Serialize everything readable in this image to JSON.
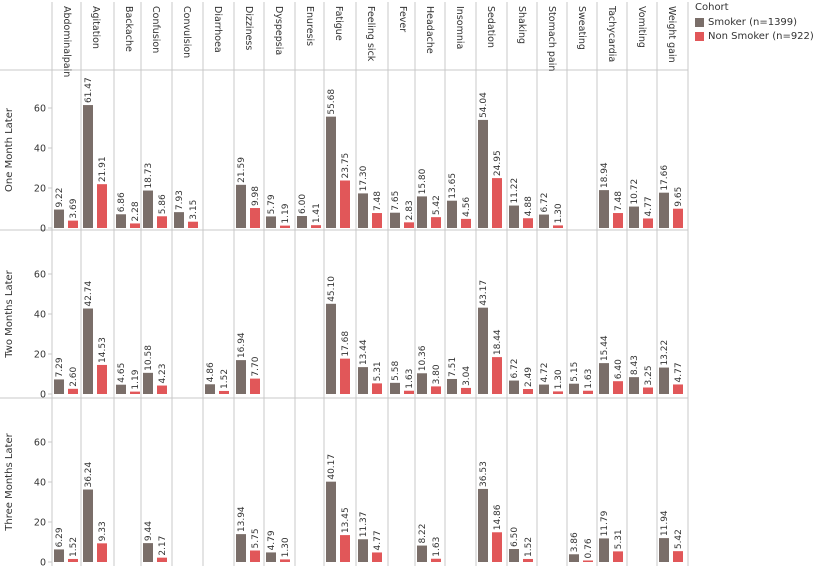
{
  "legend": {
    "title": "Cohort",
    "smoker_label": "Smoker (n=1399)",
    "nonsmoker_label": "Non Smoker (n=922)"
  },
  "colors": {
    "smoker": "#7a6e69",
    "nonsmoker": "#e15759"
  },
  "chart_data": {
    "type": "bar",
    "layout": "small-multiples (rows = time period, columns = symptom)",
    "categories": [
      "Abdominal pain",
      "Agitation",
      "Backache",
      "Confusion",
      "Convulsion",
      "Diarrhoea",
      "Dizziness",
      "Dyspepsia",
      "Enuresis",
      "Fatigue",
      "Feeling sick",
      "Fever",
      "Headache",
      "Insomnia",
      "Sedation",
      "Shaking",
      "Stomach pain",
      "Sweating",
      "Tachycardia",
      "Vomiting",
      "Weight gain"
    ],
    "category_labels": [
      "Abdominalpain",
      "Agitation",
      "Backache",
      "Confusion",
      "Convulsion",
      "Diarrhoea",
      "Dizziness",
      "Dyspepsia",
      "Enuresis",
      "Fatigue",
      "Feeling sick",
      "Fever",
      "Headache",
      "Insomnia",
      "Sedation",
      "Shaking",
      "Stomach pain",
      "Sweating",
      "Tachycardia",
      "Vomiting",
      "Weight gain"
    ],
    "rows": [
      {
        "label": "One Month Later",
        "series": [
          {
            "name": "Smoker (n=1399)",
            "values": [
              9.22,
              61.47,
              6.86,
              18.73,
              7.93,
              null,
              21.59,
              5.79,
              6.0,
              55.68,
              17.3,
              7.65,
              15.8,
              13.65,
              54.04,
              11.22,
              6.72,
              null,
              18.94,
              10.72,
              17.66
            ]
          },
          {
            "name": "Non Smoker (n=922)",
            "values": [
              3.69,
              21.91,
              2.28,
              5.86,
              3.15,
              null,
              9.98,
              1.19,
              1.41,
              23.75,
              7.48,
              2.83,
              5.42,
              4.56,
              24.95,
              4.88,
              1.3,
              null,
              7.48,
              4.77,
              9.65
            ]
          }
        ]
      },
      {
        "label": "Two Months Later",
        "series": [
          {
            "name": "Smoker (n=1399)",
            "values": [
              7.29,
              42.74,
              4.65,
              10.58,
              null,
              4.86,
              16.94,
              null,
              null,
              45.1,
              13.44,
              5.58,
              10.36,
              7.51,
              43.17,
              6.72,
              4.72,
              5.15,
              15.44,
              8.43,
              13.22
            ]
          },
          {
            "name": "Non Smoker (n=922)",
            "values": [
              2.6,
              14.53,
              1.19,
              4.23,
              null,
              1.52,
              7.7,
              null,
              null,
              17.68,
              5.31,
              1.63,
              3.8,
              3.04,
              18.44,
              2.49,
              1.3,
              1.63,
              6.4,
              3.25,
              4.77
            ]
          }
        ]
      },
      {
        "label": "Three Months Later",
        "series": [
          {
            "name": "Smoker (n=1399)",
            "values": [
              6.29,
              36.24,
              null,
              9.44,
              null,
              null,
              13.94,
              4.79,
              null,
              40.17,
              11.37,
              null,
              8.22,
              null,
              36.53,
              6.5,
              null,
              3.86,
              11.79,
              null,
              11.94
            ]
          },
          {
            "name": "Non Smoker (n=922)",
            "values": [
              1.52,
              9.33,
              null,
              2.17,
              null,
              null,
              5.75,
              1.3,
              null,
              13.45,
              4.77,
              null,
              1.63,
              null,
              14.86,
              1.52,
              null,
              0.76,
              5.31,
              null,
              5.42
            ]
          }
        ]
      }
    ],
    "ylim": [
      0,
      74
    ],
    "yticks": [
      0,
      20,
      40,
      60
    ],
    "value_format": "2 decimals",
    "grid": false
  }
}
